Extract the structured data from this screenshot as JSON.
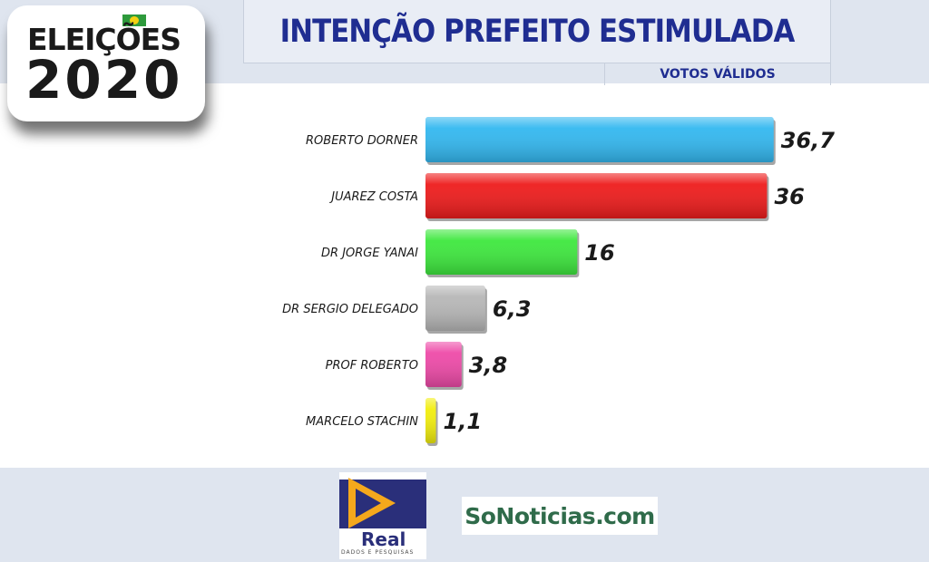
{
  "header": {
    "badge_line1": "ELEIÇÕES",
    "badge_line2": "2020",
    "title": "INTENÇÃO PREFEITO ESTIMULADA",
    "subtitle": "VOTOS VÁLIDOS"
  },
  "footer": {
    "logo1_name": "Real",
    "logo1_tagline": "DADOS E PESQUISAS",
    "logo2_name": "SoNoticias.com"
  },
  "chart_data": {
    "type": "bar",
    "orientation": "horizontal",
    "title": "INTENÇÃO PREFEITO ESTIMULADA",
    "subtitle": "VOTOS VÁLIDOS",
    "categories": [
      "ROBERTO DORNER",
      "JUAREZ COSTA",
      "DR JORGE YANAI",
      "DR SERGIO DELEGADO",
      "PROF ROBERTO",
      "MARCELO STACHIN"
    ],
    "values": [
      36.7,
      36,
      16,
      6.3,
      3.8,
      1.1
    ],
    "value_labels": [
      "36,7",
      "36",
      "16",
      "6,3",
      "3,8",
      "1,1"
    ],
    "colors": [
      "#33b8f0",
      "#ee1c1c",
      "#3ee83e",
      "#b7b7b7",
      "#ee4aa8",
      "#f2ee0e"
    ],
    "xlabel": "",
    "ylabel": "",
    "xlim": [
      0,
      38
    ],
    "grid": false,
    "legend": "none"
  }
}
